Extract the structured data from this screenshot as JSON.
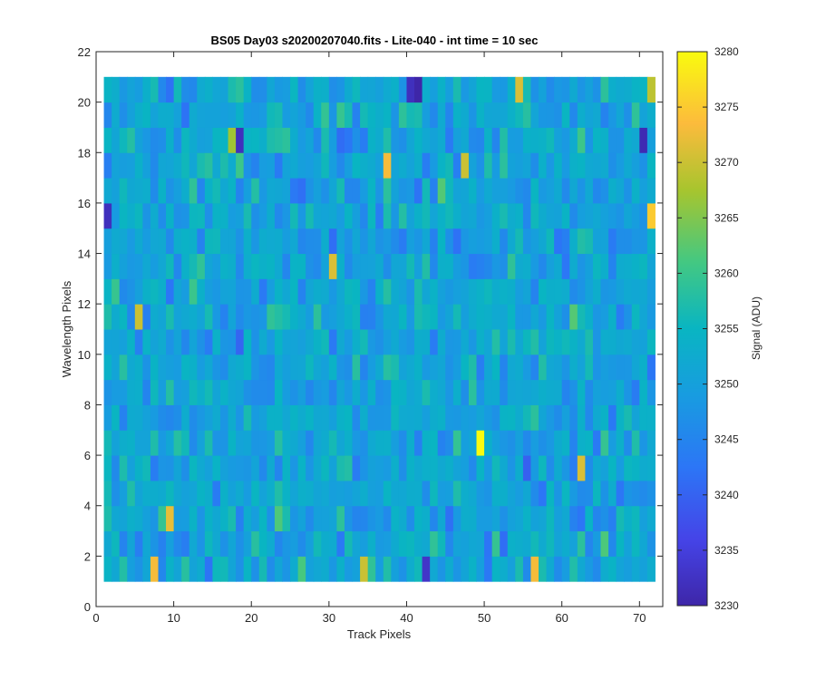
{
  "chart_data": {
    "type": "heatmap",
    "title": "BS05 Day03  s20200207040.fits - Lite-040 - int time = 10 sec",
    "xlabel": "Track Pixels",
    "ylabel": "Wavelength Pixels",
    "colorbar_label": "Signal (ADU)",
    "xlim": [
      0,
      73
    ],
    "ylim": [
      0,
      22
    ],
    "x_ticks": [
      0,
      10,
      20,
      30,
      40,
      50,
      60,
      70
    ],
    "y_ticks": [
      0,
      2,
      4,
      6,
      8,
      10,
      12,
      14,
      16,
      18,
      20,
      22
    ],
    "colorbar_range": [
      3230,
      3280
    ],
    "colorbar_ticks": [
      3230,
      3235,
      3240,
      3245,
      3250,
      3255,
      3260,
      3265,
      3270,
      3275,
      3280
    ],
    "x_range": [
      1,
      72
    ],
    "y_range": [
      1,
      21
    ],
    "colormap": "parula",
    "grid": false,
    "highlights": [
      {
        "x": 49.5,
        "y": 6.5,
        "value": 3280
      },
      {
        "x": 71.5,
        "y": 15.5,
        "value": 3275
      },
      {
        "x": 37.5,
        "y": 17.5,
        "value": 3273
      },
      {
        "x": 7.5,
        "y": 1.5,
        "value": 3273
      },
      {
        "x": 56.5,
        "y": 1.5,
        "value": 3273
      },
      {
        "x": 54.5,
        "y": 20.5,
        "value": 3271
      },
      {
        "x": 47.5,
        "y": 17.5,
        "value": 3270
      },
      {
        "x": 30.5,
        "y": 13.5,
        "value": 3271
      },
      {
        "x": 5.5,
        "y": 11.5,
        "value": 3270
      },
      {
        "x": 9.5,
        "y": 3.5,
        "value": 3272
      },
      {
        "x": 34.5,
        "y": 1.5,
        "value": 3270
      },
      {
        "x": 62.5,
        "y": 5.5,
        "value": 3271
      },
      {
        "x": 71.5,
        "y": 20.5,
        "value": 3269
      },
      {
        "x": 44.5,
        "y": 16.5,
        "value": 3262
      },
      {
        "x": 17.5,
        "y": 18.5,
        "value": 3267
      },
      {
        "x": 40.5,
        "y": 20.5,
        "value": 3232
      },
      {
        "x": 41.5,
        "y": 20.5,
        "value": 3230
      },
      {
        "x": 1.5,
        "y": 15.5,
        "value": 3232
      },
      {
        "x": 70.5,
        "y": 18.5,
        "value": 3231
      },
      {
        "x": 42.5,
        "y": 1.5,
        "value": 3233
      },
      {
        "x": 18.5,
        "y": 18.5,
        "value": 3232
      }
    ]
  }
}
